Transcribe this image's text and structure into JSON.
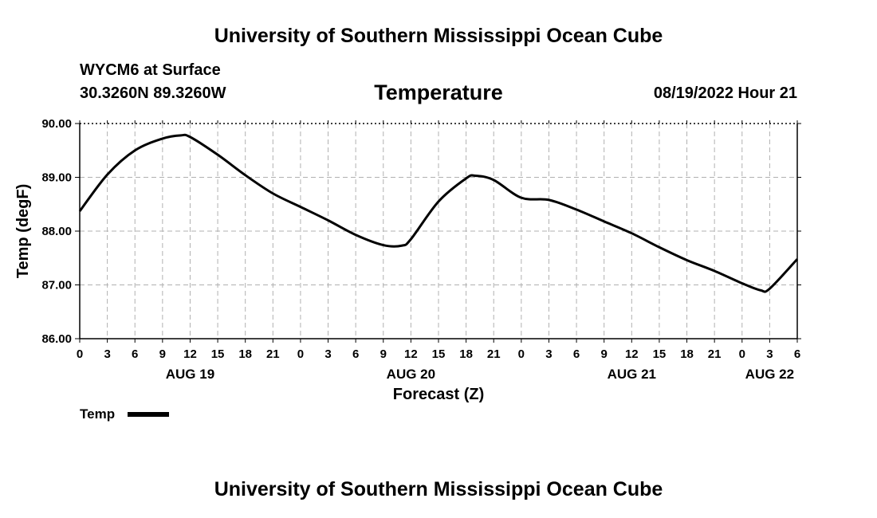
{
  "header": {
    "title": "University of Southern Mississippi Ocean Cube",
    "station": "WYCM6 at Surface",
    "coords": "30.3260N  89.3260W",
    "variable": "Temperature",
    "datetime": "08/19/2022 Hour 21"
  },
  "footer": {
    "title": "University of Southern Mississippi Ocean Cube"
  },
  "legend": {
    "label": "Temp"
  },
  "chart_data": {
    "type": "line",
    "title": "Temperature",
    "xlabel": "Forecast (Z)",
    "ylabel": "Temp (degF)",
    "xlim": [
      0,
      78
    ],
    "ylim": [
      86,
      90
    ],
    "grid": true,
    "yticks": [
      "86.00",
      "87.00",
      "88.00",
      "89.00",
      "90.00"
    ],
    "xticks": [
      "0",
      "3",
      "6",
      "9",
      "12",
      "15",
      "18",
      "21",
      "0",
      "3",
      "6",
      "9",
      "12",
      "15",
      "18",
      "21",
      "0",
      "3",
      "6",
      "9",
      "12",
      "15",
      "18",
      "21",
      "0",
      "3",
      "6"
    ],
    "day_labels": [
      {
        "label": "AUG 19",
        "hour": 12
      },
      {
        "label": "AUG 20",
        "hour": 36
      },
      {
        "label": "AUG 21",
        "hour": 60
      },
      {
        "label": "AUG 22",
        "hour": 75
      }
    ],
    "series": [
      {
        "name": "Temp",
        "color": "#000000",
        "x": [
          0,
          3,
          6,
          9,
          11,
          12,
          15,
          18,
          21,
          24,
          27,
          30,
          33,
          35,
          36,
          39,
          42,
          43,
          45,
          48,
          51,
          54,
          57,
          60,
          63,
          66,
          69,
          72,
          74,
          75,
          78
        ],
        "values": [
          88.37,
          89.05,
          89.5,
          89.72,
          89.78,
          89.75,
          89.42,
          89.04,
          88.7,
          88.45,
          88.2,
          87.93,
          87.74,
          87.73,
          87.85,
          88.55,
          88.98,
          89.03,
          88.95,
          88.62,
          88.58,
          88.4,
          88.18,
          87.96,
          87.7,
          87.46,
          87.26,
          87.03,
          86.9,
          86.93,
          87.48
        ]
      }
    ]
  }
}
